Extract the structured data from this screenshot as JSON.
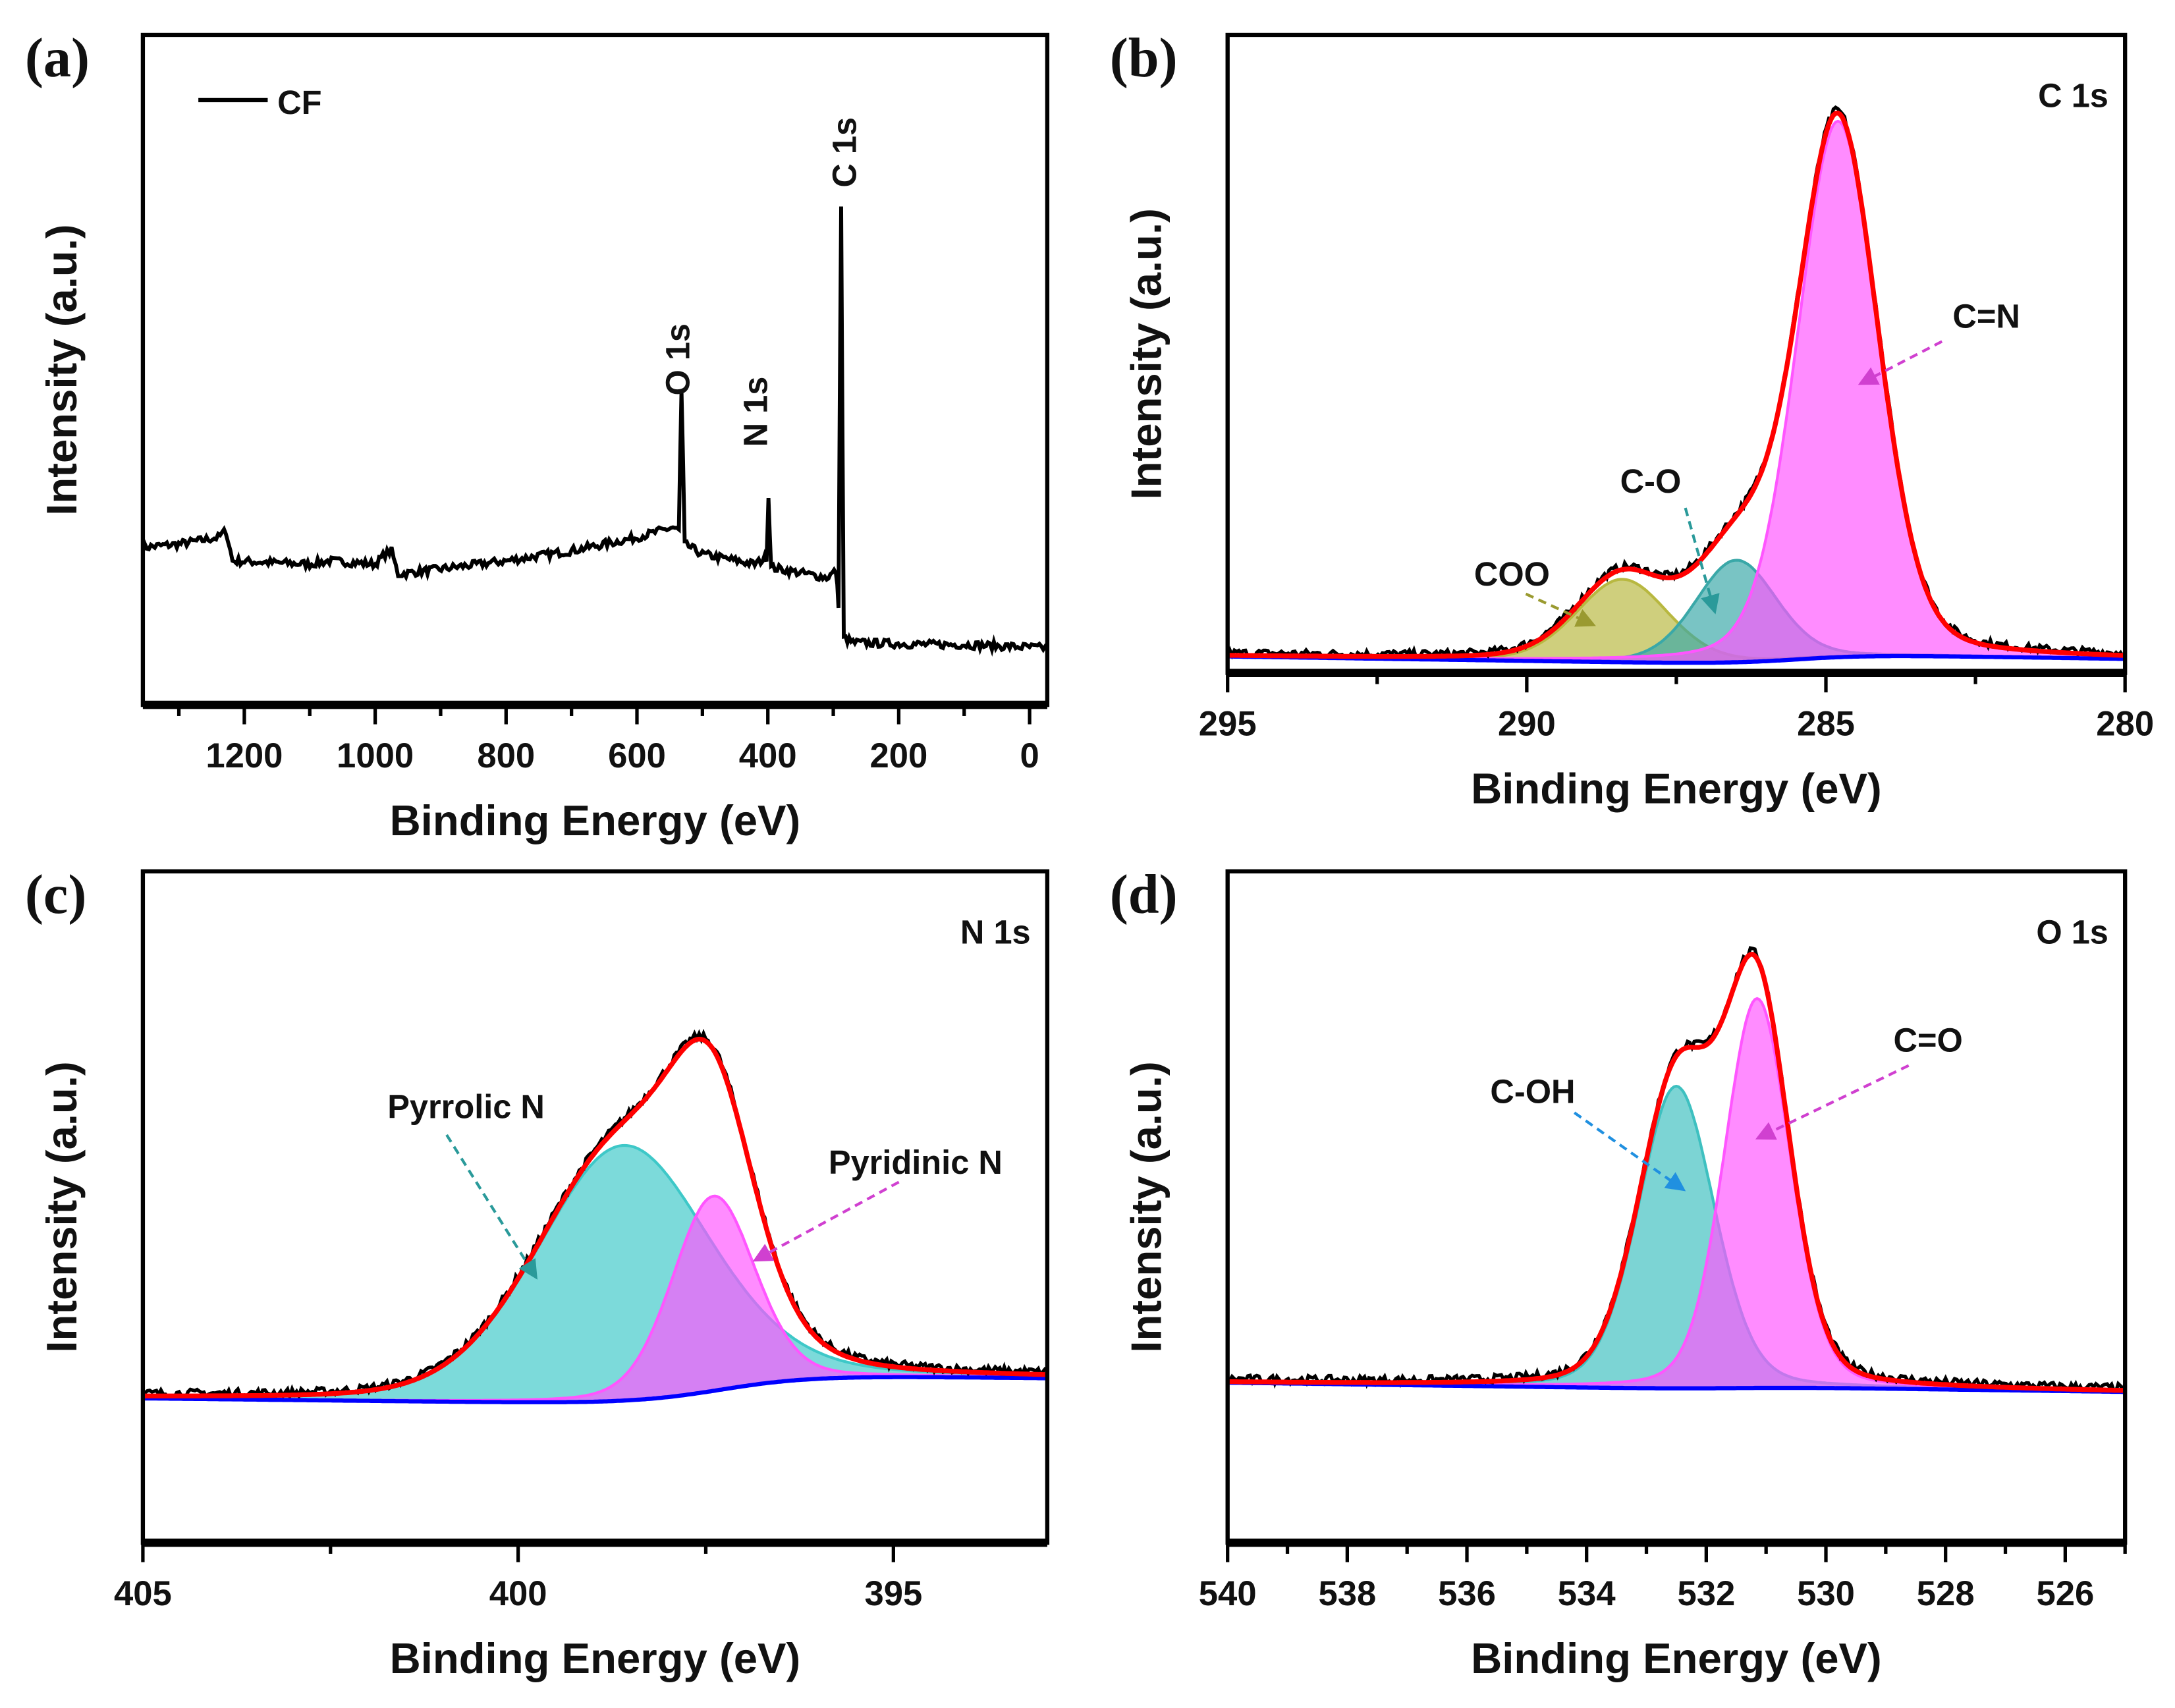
{
  "chart_data": [
    {
      "panel": "(a)",
      "type": "line",
      "title": "",
      "xlabel": "Binding Energy (eV)",
      "ylabel": "Intensity (a.u.)",
      "xlim": [
        1355,
        -27
      ],
      "ylim": [
        0,
        1
      ],
      "xticks": [
        1200,
        1000,
        800,
        600,
        400,
        200,
        0
      ],
      "minor_step": 100,
      "legend": {
        "label": "CF",
        "placement": "top-left",
        "color": "#000000"
      },
      "series": [
        {
          "name": "CF",
          "color": "#000000",
          "points": [
            [
              1355,
              0.235
            ],
            [
              1300,
              0.24
            ],
            [
              1240,
              0.25
            ],
            [
              1228,
              0.26
            ],
            [
              1218,
              0.215
            ],
            [
              1100,
              0.21
            ],
            [
              1070,
              0.215
            ],
            [
              1000,
              0.21
            ],
            [
              985,
              0.225
            ],
            [
              975,
              0.23
            ],
            [
              965,
              0.195
            ],
            [
              800,
              0.215
            ],
            [
              700,
              0.23
            ],
            [
              600,
              0.25
            ],
            [
              545,
              0.265
            ],
            [
              536,
              0.26
            ],
            [
              532,
              0.466
            ],
            [
              527,
              0.24
            ],
            [
              500,
              0.225
            ],
            [
              420,
              0.21
            ],
            [
              402,
              0.22
            ],
            [
              399,
              0.31
            ],
            [
              395,
              0.205
            ],
            [
              310,
              0.19
            ],
            [
              296,
              0.2
            ],
            [
              292,
              0.15
            ],
            [
              288,
              0.745
            ],
            [
              284,
              0.1
            ],
            [
              270,
              0.093
            ],
            [
              150,
              0.09
            ],
            [
              100,
              0.09
            ],
            [
              -27,
              0.085
            ]
          ]
        }
      ],
      "peak_labels": [
        {
          "label": "O 1s",
          "x": 532
        },
        {
          "label": "N 1s",
          "x": 399
        },
        {
          "label": "C 1s",
          "x": 285
        }
      ]
    },
    {
      "panel": "(b)",
      "type": "area",
      "region": "C 1s",
      "xlabel": "Binding Energy (eV)",
      "ylabel": "Intensity (a.u.)",
      "xlim": [
        295,
        280
      ],
      "ylim": [
        0,
        1
      ],
      "xticks": [
        295,
        290,
        285,
        280
      ],
      "minor_step": 2.5,
      "background": {
        "start": 0.043,
        "end": 0.005,
        "step_center": 285.5,
        "step_fraction": 0.45,
        "color": "#0000ff"
      },
      "components": [
        {
          "label": "COO",
          "center": 288.4,
          "fwhm": 1.8,
          "height": 0.13,
          "color": "#b8b840"
        },
        {
          "label": "C-O",
          "center": 286.5,
          "fwhm": 1.6,
          "height": 0.16,
          "color": "#3aa8a8"
        },
        {
          "label": "C=N",
          "center": 284.8,
          "fwhm": 1.6,
          "height": 0.84,
          "color": "#ff55ff"
        }
      ],
      "envelope_color": "#ff0000",
      "raw_color": "#000000"
    },
    {
      "panel": "(c)",
      "type": "area",
      "region": "N 1s",
      "xlabel": "Binding Energy (eV)",
      "ylabel": "Intensity (a.u.)",
      "xlim": [
        405,
        392.95
      ],
      "ylim": [
        0,
        1
      ],
      "xticks": [
        405,
        400,
        395
      ],
      "minor_step": 2.5,
      "background": {
        "start": 0.26,
        "end": 0.2,
        "step_center": 397.3,
        "step_fraction": 0.75,
        "color": "#0000ff"
      },
      "components": [
        {
          "label": "Pyrrolic N",
          "center": 398.6,
          "fwhm": 2.7,
          "height": 0.38,
          "color": "#3ec8c8"
        },
        {
          "label": "Pyridinic N",
          "center": 397.4,
          "fwhm": 1.3,
          "height": 0.29,
          "color": "#ff55ff"
        }
      ],
      "envelope_color": "#ff0000",
      "raw_color": "#000000"
    },
    {
      "panel": "(d)",
      "type": "area",
      "region": "O 1s",
      "xlabel": "Binding Energy (eV)",
      "ylabel": "Intensity (a.u.)",
      "xlim": [
        540,
        525
      ],
      "ylim": [
        0,
        1
      ],
      "xticks": [
        540,
        538,
        536,
        534,
        532,
        530,
        528,
        526
      ],
      "minor_step": 1,
      "background": {
        "start": 0.243,
        "end": 0.22,
        "step_center": 531.5,
        "step_fraction": 0.2,
        "color": "#0000ff"
      },
      "components": [
        {
          "label": "C-OH",
          "center": 532.5,
          "fwhm": 1.5,
          "height": 0.45,
          "color": "#3ec0c0"
        },
        {
          "label": "C=O",
          "center": 531.15,
          "fwhm": 1.3,
          "height": 0.58,
          "color": "#ff55ff"
        }
      ],
      "envelope_color": "#ff0000",
      "raw_color": "#000000"
    }
  ]
}
